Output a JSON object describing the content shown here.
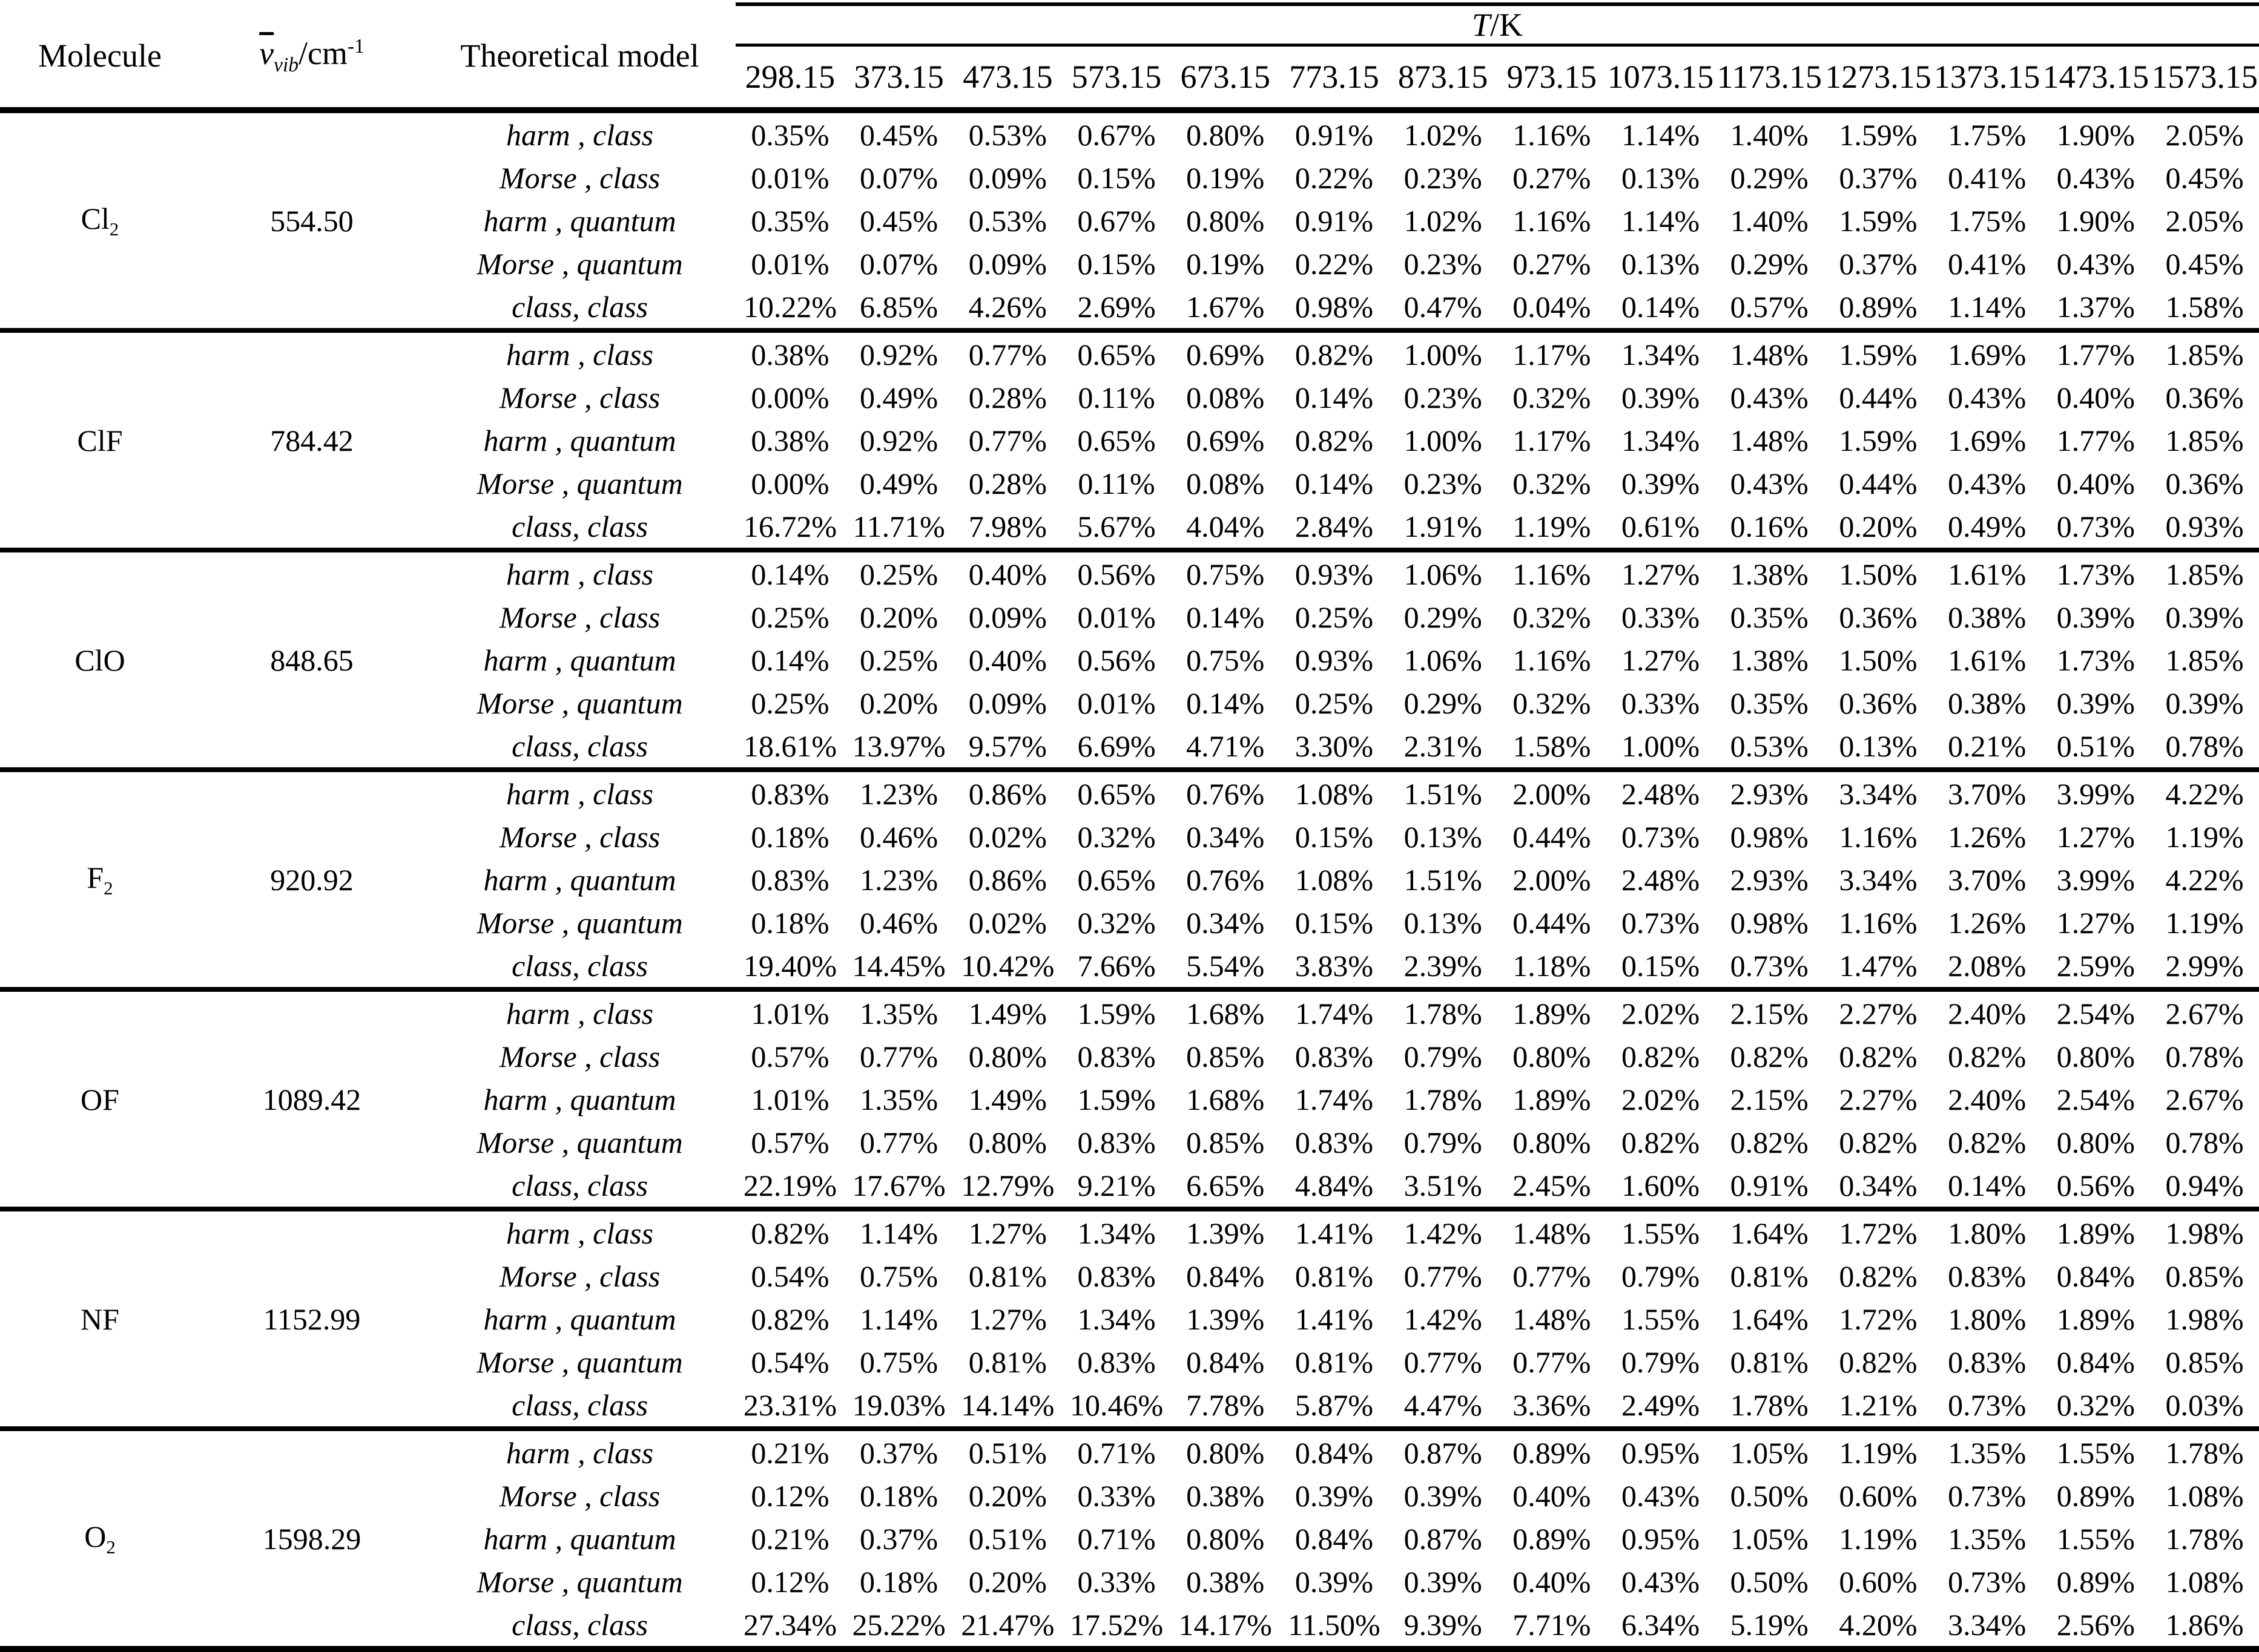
{
  "table": {
    "headers": {
      "molecule": "Molecule",
      "wavenumber": {
        "symbol": "v",
        "sub": "vib",
        "unit": "/cm",
        "exp": "-1"
      },
      "model": "Theoretical model",
      "temperature": {
        "symbol": "T",
        "unit": "/K"
      }
    },
    "temperatures": [
      "298.15",
      "373.15",
      "473.15",
      "573.15",
      "673.15",
      "773.15",
      "873.15",
      "973.15",
      "1073.15",
      "1173.15",
      "1273.15",
      "1373.15",
      "1473.15",
      "1573.15"
    ],
    "molecules": [
      {
        "name": "Cl",
        "name_sub": "2",
        "wavenumber": "554.50",
        "rows": [
          {
            "model": "harm , class",
            "values": [
              "0.35%",
              "0.45%",
              "0.53%",
              "0.67%",
              "0.80%",
              "0.91%",
              "1.02%",
              "1.16%",
              "1.14%",
              "1.40%",
              "1.59%",
              "1.75%",
              "1.90%",
              "2.05%"
            ]
          },
          {
            "model": "Morse , class",
            "values": [
              "0.01%",
              "0.07%",
              "0.09%",
              "0.15%",
              "0.19%",
              "0.22%",
              "0.23%",
              "0.27%",
              "0.13%",
              "0.29%",
              "0.37%",
              "0.41%",
              "0.43%",
              "0.45%"
            ]
          },
          {
            "model": "harm , quantum",
            "values": [
              "0.35%",
              "0.45%",
              "0.53%",
              "0.67%",
              "0.80%",
              "0.91%",
              "1.02%",
              "1.16%",
              "1.14%",
              "1.40%",
              "1.59%",
              "1.75%",
              "1.90%",
              "2.05%"
            ]
          },
          {
            "model": "Morse , quantum",
            "values": [
              "0.01%",
              "0.07%",
              "0.09%",
              "0.15%",
              "0.19%",
              "0.22%",
              "0.23%",
              "0.27%",
              "0.13%",
              "0.29%",
              "0.37%",
              "0.41%",
              "0.43%",
              "0.45%"
            ]
          },
          {
            "model": "class, class",
            "values": [
              "10.22%",
              "6.85%",
              "4.26%",
              "2.69%",
              "1.67%",
              "0.98%",
              "0.47%",
              "0.04%",
              "0.14%",
              "0.57%",
              "0.89%",
              "1.14%",
              "1.37%",
              "1.58%"
            ]
          }
        ]
      },
      {
        "name": "ClF",
        "name_sub": "",
        "wavenumber": "784.42",
        "rows": [
          {
            "model": "harm , class",
            "values": [
              "0.38%",
              "0.92%",
              "0.77%",
              "0.65%",
              "0.69%",
              "0.82%",
              "1.00%",
              "1.17%",
              "1.34%",
              "1.48%",
              "1.59%",
              "1.69%",
              "1.77%",
              "1.85%"
            ]
          },
          {
            "model": "Morse , class",
            "values": [
              "0.00%",
              "0.49%",
              "0.28%",
              "0.11%",
              "0.08%",
              "0.14%",
              "0.23%",
              "0.32%",
              "0.39%",
              "0.43%",
              "0.44%",
              "0.43%",
              "0.40%",
              "0.36%"
            ]
          },
          {
            "model": "harm , quantum",
            "values": [
              "0.38%",
              "0.92%",
              "0.77%",
              "0.65%",
              "0.69%",
              "0.82%",
              "1.00%",
              "1.17%",
              "1.34%",
              "1.48%",
              "1.59%",
              "1.69%",
              "1.77%",
              "1.85%"
            ]
          },
          {
            "model": "Morse , quantum",
            "values": [
              "0.00%",
              "0.49%",
              "0.28%",
              "0.11%",
              "0.08%",
              "0.14%",
              "0.23%",
              "0.32%",
              "0.39%",
              "0.43%",
              "0.44%",
              "0.43%",
              "0.40%",
              "0.36%"
            ]
          },
          {
            "model": "class, class",
            "values": [
              "16.72%",
              "11.71%",
              "7.98%",
              "5.67%",
              "4.04%",
              "2.84%",
              "1.91%",
              "1.19%",
              "0.61%",
              "0.16%",
              "0.20%",
              "0.49%",
              "0.73%",
              "0.93%"
            ]
          }
        ]
      },
      {
        "name": "ClO",
        "name_sub": "",
        "wavenumber": "848.65",
        "rows": [
          {
            "model": "harm , class",
            "values": [
              "0.14%",
              "0.25%",
              "0.40%",
              "0.56%",
              "0.75%",
              "0.93%",
              "1.06%",
              "1.16%",
              "1.27%",
              "1.38%",
              "1.50%",
              "1.61%",
              "1.73%",
              "1.85%"
            ]
          },
          {
            "model": "Morse , class",
            "values": [
              "0.25%",
              "0.20%",
              "0.09%",
              "0.01%",
              "0.14%",
              "0.25%",
              "0.29%",
              "0.32%",
              "0.33%",
              "0.35%",
              "0.36%",
              "0.38%",
              "0.39%",
              "0.39%"
            ]
          },
          {
            "model": "harm , quantum",
            "values": [
              "0.14%",
              "0.25%",
              "0.40%",
              "0.56%",
              "0.75%",
              "0.93%",
              "1.06%",
              "1.16%",
              "1.27%",
              "1.38%",
              "1.50%",
              "1.61%",
              "1.73%",
              "1.85%"
            ]
          },
          {
            "model": "Morse , quantum",
            "values": [
              "0.25%",
              "0.20%",
              "0.09%",
              "0.01%",
              "0.14%",
              "0.25%",
              "0.29%",
              "0.32%",
              "0.33%",
              "0.35%",
              "0.36%",
              "0.38%",
              "0.39%",
              "0.39%"
            ]
          },
          {
            "model": "class, class",
            "values": [
              "18.61%",
              "13.97%",
              "9.57%",
              "6.69%",
              "4.71%",
              "3.30%",
              "2.31%",
              "1.58%",
              "1.00%",
              "0.53%",
              "0.13%",
              "0.21%",
              "0.51%",
              "0.78%"
            ]
          }
        ]
      },
      {
        "name": "F",
        "name_sub": "2",
        "wavenumber": "920.92",
        "rows": [
          {
            "model": "harm , class",
            "values": [
              "0.83%",
              "1.23%",
              "0.86%",
              "0.65%",
              "0.76%",
              "1.08%",
              "1.51%",
              "2.00%",
              "2.48%",
              "2.93%",
              "3.34%",
              "3.70%",
              "3.99%",
              "4.22%"
            ]
          },
          {
            "model": "Morse , class",
            "values": [
              "0.18%",
              "0.46%",
              "0.02%",
              "0.32%",
              "0.34%",
              "0.15%",
              "0.13%",
              "0.44%",
              "0.73%",
              "0.98%",
              "1.16%",
              "1.26%",
              "1.27%",
              "1.19%"
            ]
          },
          {
            "model": "harm , quantum",
            "values": [
              "0.83%",
              "1.23%",
              "0.86%",
              "0.65%",
              "0.76%",
              "1.08%",
              "1.51%",
              "2.00%",
              "2.48%",
              "2.93%",
              "3.34%",
              "3.70%",
              "3.99%",
              "4.22%"
            ]
          },
          {
            "model": "Morse , quantum",
            "values": [
              "0.18%",
              "0.46%",
              "0.02%",
              "0.32%",
              "0.34%",
              "0.15%",
              "0.13%",
              "0.44%",
              "0.73%",
              "0.98%",
              "1.16%",
              "1.26%",
              "1.27%",
              "1.19%"
            ]
          },
          {
            "model": "class, class",
            "values": [
              "19.40%",
              "14.45%",
              "10.42%",
              "7.66%",
              "5.54%",
              "3.83%",
              "2.39%",
              "1.18%",
              "0.15%",
              "0.73%",
              "1.47%",
              "2.08%",
              "2.59%",
              "2.99%"
            ]
          }
        ]
      },
      {
        "name": "OF",
        "name_sub": "",
        "wavenumber": "1089.42",
        "rows": [
          {
            "model": "harm , class",
            "values": [
              "1.01%",
              "1.35%",
              "1.49%",
              "1.59%",
              "1.68%",
              "1.74%",
              "1.78%",
              "1.89%",
              "2.02%",
              "2.15%",
              "2.27%",
              "2.40%",
              "2.54%",
              "2.67%"
            ]
          },
          {
            "model": "Morse , class",
            "values": [
              "0.57%",
              "0.77%",
              "0.80%",
              "0.83%",
              "0.85%",
              "0.83%",
              "0.79%",
              "0.80%",
              "0.82%",
              "0.82%",
              "0.82%",
              "0.82%",
              "0.80%",
              "0.78%"
            ]
          },
          {
            "model": "harm , quantum",
            "values": [
              "1.01%",
              "1.35%",
              "1.49%",
              "1.59%",
              "1.68%",
              "1.74%",
              "1.78%",
              "1.89%",
              "2.02%",
              "2.15%",
              "2.27%",
              "2.40%",
              "2.54%",
              "2.67%"
            ]
          },
          {
            "model": "Morse , quantum",
            "values": [
              "0.57%",
              "0.77%",
              "0.80%",
              "0.83%",
              "0.85%",
              "0.83%",
              "0.79%",
              "0.80%",
              "0.82%",
              "0.82%",
              "0.82%",
              "0.82%",
              "0.80%",
              "0.78%"
            ]
          },
          {
            "model": "class, class",
            "values": [
              "22.19%",
              "17.67%",
              "12.79%",
              "9.21%",
              "6.65%",
              "4.84%",
              "3.51%",
              "2.45%",
              "1.60%",
              "0.91%",
              "0.34%",
              "0.14%",
              "0.56%",
              "0.94%"
            ]
          }
        ]
      },
      {
        "name": "NF",
        "name_sub": "",
        "wavenumber": "1152.99",
        "rows": [
          {
            "model": "harm , class",
            "values": [
              "0.82%",
              "1.14%",
              "1.27%",
              "1.34%",
              "1.39%",
              "1.41%",
              "1.42%",
              "1.48%",
              "1.55%",
              "1.64%",
              "1.72%",
              "1.80%",
              "1.89%",
              "1.98%"
            ]
          },
          {
            "model": "Morse , class",
            "values": [
              "0.54%",
              "0.75%",
              "0.81%",
              "0.83%",
              "0.84%",
              "0.81%",
              "0.77%",
              "0.77%",
              "0.79%",
              "0.81%",
              "0.82%",
              "0.83%",
              "0.84%",
              "0.85%"
            ]
          },
          {
            "model": "harm , quantum",
            "values": [
              "0.82%",
              "1.14%",
              "1.27%",
              "1.34%",
              "1.39%",
              "1.41%",
              "1.42%",
              "1.48%",
              "1.55%",
              "1.64%",
              "1.72%",
              "1.80%",
              "1.89%",
              "1.98%"
            ]
          },
          {
            "model": "Morse , quantum",
            "values": [
              "0.54%",
              "0.75%",
              "0.81%",
              "0.83%",
              "0.84%",
              "0.81%",
              "0.77%",
              "0.77%",
              "0.79%",
              "0.81%",
              "0.82%",
              "0.83%",
              "0.84%",
              "0.85%"
            ]
          },
          {
            "model": "class, class",
            "values": [
              "23.31%",
              "19.03%",
              "14.14%",
              "10.46%",
              "7.78%",
              "5.87%",
              "4.47%",
              "3.36%",
              "2.49%",
              "1.78%",
              "1.21%",
              "0.73%",
              "0.32%",
              "0.03%"
            ]
          }
        ]
      },
      {
        "name": "O",
        "name_sub": "2",
        "wavenumber": "1598.29",
        "rows": [
          {
            "model": "harm , class",
            "values": [
              "0.21%",
              "0.37%",
              "0.51%",
              "0.71%",
              "0.80%",
              "0.84%",
              "0.87%",
              "0.89%",
              "0.95%",
              "1.05%",
              "1.19%",
              "1.35%",
              "1.55%",
              "1.78%"
            ]
          },
          {
            "model": "Morse , class",
            "values": [
              "0.12%",
              "0.18%",
              "0.20%",
              "0.33%",
              "0.38%",
              "0.39%",
              "0.39%",
              "0.40%",
              "0.43%",
              "0.50%",
              "0.60%",
              "0.73%",
              "0.89%",
              "1.08%"
            ]
          },
          {
            "model": "harm , quantum",
            "values": [
              "0.21%",
              "0.37%",
              "0.51%",
              "0.71%",
              "0.80%",
              "0.84%",
              "0.87%",
              "0.89%",
              "0.95%",
              "1.05%",
              "1.19%",
              "1.35%",
              "1.55%",
              "1.78%"
            ]
          },
          {
            "model": "Morse , quantum",
            "values": [
              "0.12%",
              "0.18%",
              "0.20%",
              "0.33%",
              "0.38%",
              "0.39%",
              "0.39%",
              "0.40%",
              "0.43%",
              "0.50%",
              "0.60%",
              "0.73%",
              "0.89%",
              "1.08%"
            ]
          },
          {
            "model": "class, class",
            "values": [
              "27.34%",
              "25.22%",
              "21.47%",
              "17.52%",
              "14.17%",
              "11.50%",
              "9.39%",
              "7.71%",
              "6.34%",
              "5.19%",
              "4.20%",
              "3.34%",
              "2.56%",
              "1.86%"
            ]
          }
        ]
      }
    ]
  }
}
